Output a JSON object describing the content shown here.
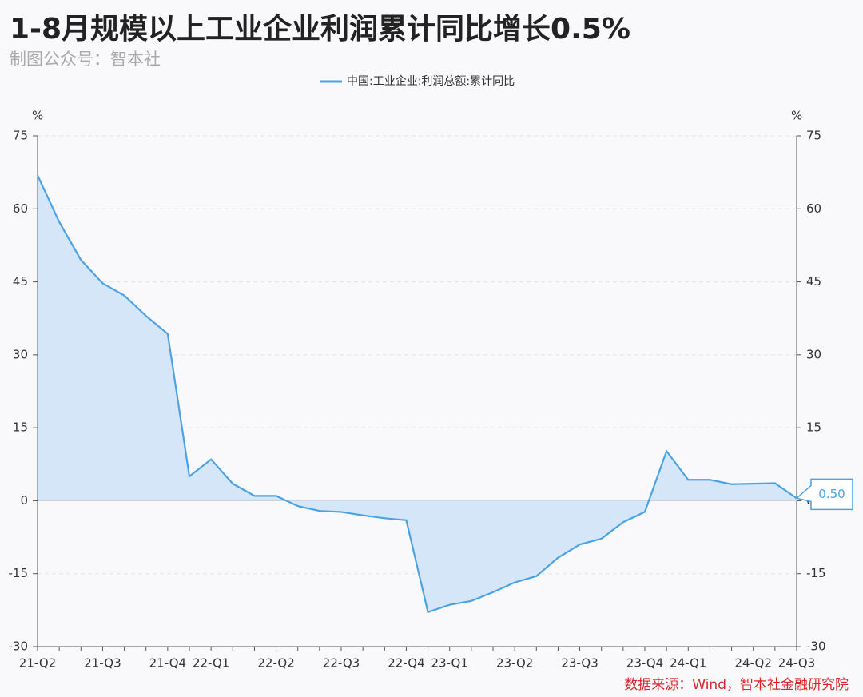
{
  "chart_data": {
    "type": "line",
    "title": "1-8月规模以上工业企业利润累计同比增长0.5%",
    "subtitle": "制图公众号：智本社",
    "source": "数据来源：Wind，智本社金融研究院",
    "y_unit": "%",
    "y2_unit": "%",
    "categories": [
      "21-Q2",
      null,
      null,
      "21-Q3",
      null,
      null,
      "21-Q4",
      null,
      "22-Q1",
      null,
      null,
      "22-Q2",
      null,
      null,
      "22-Q3",
      null,
      null,
      "22-Q4",
      null,
      "23-Q1",
      null,
      null,
      "23-Q2",
      null,
      null,
      "23-Q3",
      null,
      null,
      "23-Q4",
      null,
      "24-Q1",
      null,
      null,
      "24-Q2",
      null,
      "24-Q3"
    ],
    "series": [
      {
        "name": "中国:工业企业:利润总额:累计同比",
        "color": "#4ba3e3",
        "fill": "#d5e6f8",
        "values": [
          66.9,
          57.3,
          49.5,
          44.7,
          42.2,
          38.0,
          34.3,
          5.0,
          8.5,
          3.5,
          1.0,
          1.0,
          -1.1,
          -2.1,
          -2.3,
          -3.0,
          -3.6,
          -4.0,
          -22.9,
          -21.4,
          -20.6,
          -18.8,
          -16.8,
          -15.5,
          -11.7,
          -9.0,
          -7.8,
          -4.4,
          -2.3,
          10.2,
          4.3,
          4.3,
          3.4,
          3.5,
          3.6,
          0.5
        ],
        "value_labels": [
          null,
          null,
          null,
          null,
          null,
          null,
          null,
          null,
          null,
          null,
          null,
          null,
          null,
          null,
          null,
          null,
          null,
          null,
          null,
          null,
          null,
          null,
          null,
          null,
          null,
          null,
          null,
          null,
          null,
          null,
          null,
          null,
          null,
          null,
          null,
          "0.50"
        ]
      }
    ],
    "ylim": [
      -30,
      75
    ],
    "yticks": [
      -30,
      -15,
      0,
      15,
      30,
      45,
      60,
      75
    ],
    "y2lim": [
      -30,
      75
    ],
    "y2ticks": [
      -30,
      -15,
      0,
      15,
      30,
      45,
      60,
      75
    ],
    "grid": true
  }
}
